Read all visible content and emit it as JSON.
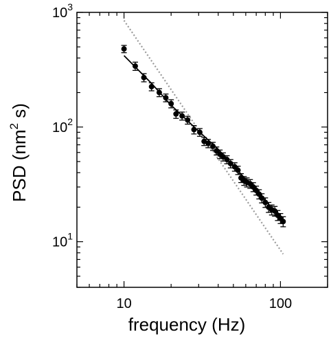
{
  "chart_data": {
    "type": "scatter",
    "title": "",
    "xlabel": "frequency (Hz)",
    "ylabel_main": "PSD (nm",
    "ylabel_sup": "2",
    "ylabel_tail": " s)",
    "x_scale": "log",
    "y_scale": "log",
    "xlim": [
      5,
      200
    ],
    "ylim": [
      4,
      1000
    ],
    "grid": false,
    "legend": "none",
    "x_tick_labels": [
      {
        "value": 10,
        "label": "10"
      },
      {
        "value": 100,
        "label": "100"
      }
    ],
    "y_tick_labels": [
      {
        "value": 10,
        "base": "10",
        "exp": "1"
      },
      {
        "value": 100,
        "base": "10",
        "exp": "2"
      },
      {
        "value": 1000,
        "base": "10",
        "exp": "3"
      }
    ],
    "series": [
      {
        "style": "points-with-error-bars",
        "color": "#000000",
        "points": [
          {
            "x": 10.0,
            "y": 480,
            "err": 35
          },
          {
            "x": 11.8,
            "y": 340,
            "err": 28
          },
          {
            "x": 13.4,
            "y": 270,
            "err": 22
          },
          {
            "x": 15.0,
            "y": 225,
            "err": 18
          },
          {
            "x": 16.8,
            "y": 200,
            "err": 16
          },
          {
            "x": 18.5,
            "y": 180,
            "err": 14
          },
          {
            "x": 20.0,
            "y": 160,
            "err": 13
          },
          {
            "x": 21.5,
            "y": 130,
            "err": 11
          },
          {
            "x": 23.5,
            "y": 125,
            "err": 10
          },
          {
            "x": 25.5,
            "y": 115,
            "err": 9
          },
          {
            "x": 28.0,
            "y": 95,
            "err": 8
          },
          {
            "x": 30.5,
            "y": 90,
            "err": 7
          },
          {
            "x": 32.5,
            "y": 75,
            "err": 6
          },
          {
            "x": 34.5,
            "y": 72,
            "err": 6
          },
          {
            "x": 37.0,
            "y": 68,
            "err": 5.5
          },
          {
            "x": 39.0,
            "y": 62,
            "err": 5
          },
          {
            "x": 41.0,
            "y": 58,
            "err": 5
          },
          {
            "x": 43.0,
            "y": 55,
            "err": 4.5
          },
          {
            "x": 45.5,
            "y": 52,
            "err": 4.2
          },
          {
            "x": 48.0,
            "y": 48,
            "err": 4
          },
          {
            "x": 51.0,
            "y": 45,
            "err": 3.8
          },
          {
            "x": 53.5,
            "y": 42,
            "err": 3.5
          },
          {
            "x": 56.0,
            "y": 36,
            "err": 3.2
          },
          {
            "x": 58.5,
            "y": 34,
            "err": 3
          },
          {
            "x": 61.0,
            "y": 33,
            "err": 3
          },
          {
            "x": 64.0,
            "y": 32,
            "err": 2.8
          },
          {
            "x": 67.0,
            "y": 30,
            "err": 2.7
          },
          {
            "x": 70.0,
            "y": 28,
            "err": 2.5
          },
          {
            "x": 73.0,
            "y": 26,
            "err": 2.4
          },
          {
            "x": 76.0,
            "y": 24,
            "err": 2.2
          },
          {
            "x": 80.0,
            "y": 22,
            "err": 2.1
          },
          {
            "x": 84.0,
            "y": 20,
            "err": 2
          },
          {
            "x": 88.0,
            "y": 19,
            "err": 1.9
          },
          {
            "x": 92.0,
            "y": 18.5,
            "err": 1.8
          },
          {
            "x": 96.0,
            "y": 17,
            "err": 1.7
          },
          {
            "x": 100.0,
            "y": 16,
            "err": 1.6
          },
          {
            "x": 104.0,
            "y": 15,
            "err": 1.5
          }
        ]
      },
      {
        "style": "solid-line",
        "color": "#000000",
        "points": [
          {
            "x": 10.0,
            "y": 420
          },
          {
            "x": 15.0,
            "y": 240
          },
          {
            "x": 20.0,
            "y": 155
          },
          {
            "x": 30.0,
            "y": 92
          },
          {
            "x": 40.0,
            "y": 64
          },
          {
            "x": 50.0,
            "y": 46
          },
          {
            "x": 60.0,
            "y": 35
          },
          {
            "x": 70.0,
            "y": 28
          },
          {
            "x": 80.0,
            "y": 23
          },
          {
            "x": 90.0,
            "y": 19
          },
          {
            "x": 104.0,
            "y": 16
          }
        ]
      },
      {
        "style": "dotted-line",
        "color": "#999999",
        "points": [
          {
            "x": 10.0,
            "y": 850
          },
          {
            "x": 104.0,
            "y": 7.8
          }
        ]
      }
    ]
  }
}
